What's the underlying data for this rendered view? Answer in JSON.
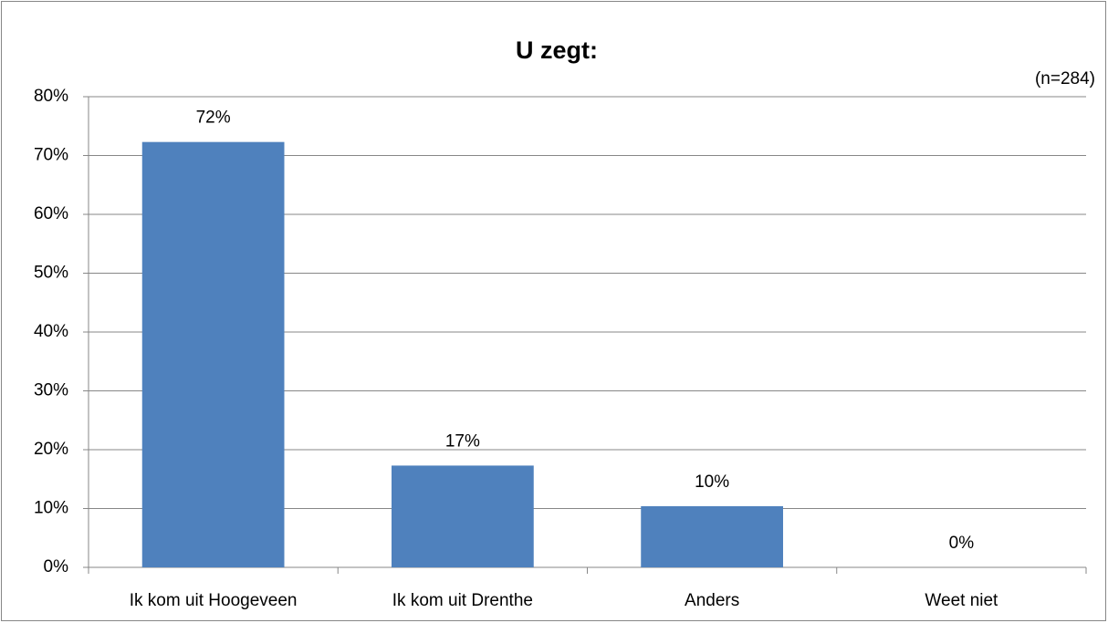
{
  "chart_data": {
    "type": "bar",
    "title": "U zegt:",
    "subtitle": "(n=284)",
    "categories": [
      "Ik kom uit Hoogeveen",
      "Ik kom uit Drenthe",
      "Anders",
      "Weet niet"
    ],
    "values": [
      72.3,
      17.3,
      10.4,
      0
    ],
    "value_labels": [
      "72%",
      "17%",
      "10%",
      "0%"
    ],
    "color": "#4f81bd",
    "ylim": [
      0,
      80
    ],
    "yticks": [
      {
        "value": 0,
        "label": "0%"
      },
      {
        "value": 10,
        "label": "10%"
      },
      {
        "value": 20,
        "label": "20%"
      },
      {
        "value": 30,
        "label": "30%"
      },
      {
        "value": 40,
        "label": "40%"
      },
      {
        "value": 50,
        "label": "50%"
      },
      {
        "value": 60,
        "label": "60%"
      },
      {
        "value": 70,
        "label": "70%"
      },
      {
        "value": 80,
        "label": "80%"
      }
    ],
    "grid": true
  }
}
